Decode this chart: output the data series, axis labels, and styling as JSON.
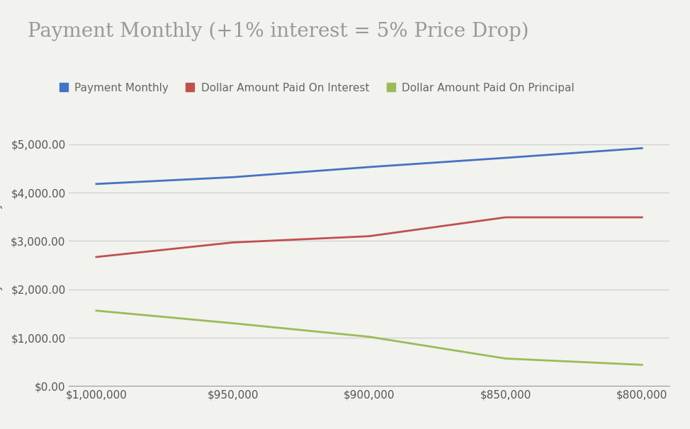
{
  "title": "Payment Monthly (+1% interest = 5% Price Drop)",
  "ylabel": "Payment Monthly",
  "xlabel": "",
  "background_color": "#f2f2ee",
  "title_color": "#999999",
  "title_fontsize": 20,
  "x_labels": [
    "$1,000,000",
    "$950,000",
    "$900,000",
    "$850,000",
    "$800,000"
  ],
  "x_values": [
    1000000,
    950000,
    900000,
    850000,
    800000
  ],
  "payment_monthly": [
    4180,
    4320,
    4530,
    4720,
    4920
  ],
  "interest_paid": [
    2670,
    2970,
    3100,
    3490,
    3490
  ],
  "principal_paid": [
    1560,
    1300,
    1020,
    570,
    440
  ],
  "line_color_blue": "#4472c4",
  "line_color_red": "#c0504d",
  "line_color_green": "#9bbb59",
  "ylim": [
    0,
    5500
  ],
  "yticks": [
    0,
    1000,
    2000,
    3000,
    4000,
    5000
  ],
  "legend_labels": [
    "Payment Monthly",
    "Dollar Amount Paid On Interest",
    "Dollar Amount Paid On Principal"
  ],
  "grid_color": "#cccccc",
  "axis_label_color": "#666666",
  "tick_label_color": "#555555"
}
